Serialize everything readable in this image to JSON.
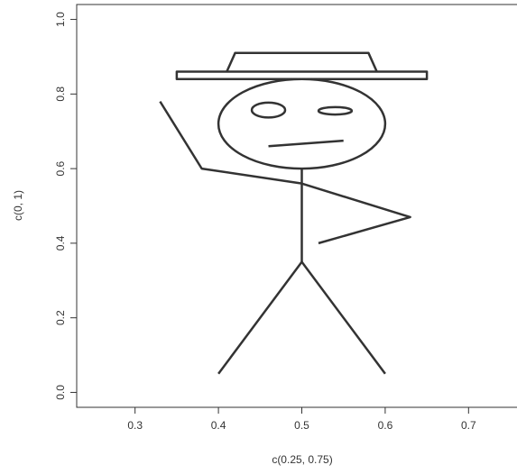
{
  "chart_data": {
    "type": "drawing",
    "x_label": "c(0.25, 0.75)",
    "y_label": "c(0, 1)",
    "xlim": [
      0.23,
      0.77
    ],
    "ylim": [
      -0.04,
      1.04
    ],
    "xticks": [
      0.3,
      0.4,
      0.5,
      0.6,
      0.7
    ],
    "yticks": [
      {
        "value": 0,
        "label": "0.0"
      },
      0.2,
      0.4,
      0.6,
      0.8,
      {
        "value": 1,
        "label": "1.0"
      }
    ],
    "color": "#333333",
    "shapes": [
      {
        "kind": "polygon",
        "x": [
          0.35,
          0.65,
          0.65,
          0.35
        ],
        "y": [
          0.84,
          0.84,
          0.86,
          0.86
        ]
      },
      {
        "kind": "polyline",
        "x": [
          0.41,
          0.42,
          0.58,
          0.59
        ],
        "y": [
          0.86,
          0.91,
          0.91,
          0.86
        ]
      },
      {
        "kind": "ellipse",
        "cx": 0.5,
        "cy": 0.72,
        "rx": 0.1,
        "ry": 0.12
      },
      {
        "kind": "ellipse",
        "cx": 0.46,
        "cy": 0.757,
        "rx": 0.02,
        "ry": 0.02
      },
      {
        "kind": "ellipse",
        "cx": 0.54,
        "cy": 0.755,
        "rx": 0.02,
        "ry": 0.01
      },
      {
        "kind": "polyline",
        "x": [
          0.46,
          0.55
        ],
        "y": [
          0.66,
          0.675
        ]
      },
      {
        "kind": "polyline",
        "x": [
          0.5,
          0.5
        ],
        "y": [
          0.6,
          0.35
        ]
      },
      {
        "kind": "polyline",
        "x": [
          0.33,
          0.38,
          0.5,
          0.63,
          0.52
        ],
        "y": [
          0.78,
          0.6,
          0.56,
          0.47,
          0.4
        ]
      },
      {
        "kind": "polyline",
        "x": [
          0.4,
          0.5,
          0.6
        ],
        "y": [
          0.05,
          0.35,
          0.05
        ]
      }
    ]
  }
}
